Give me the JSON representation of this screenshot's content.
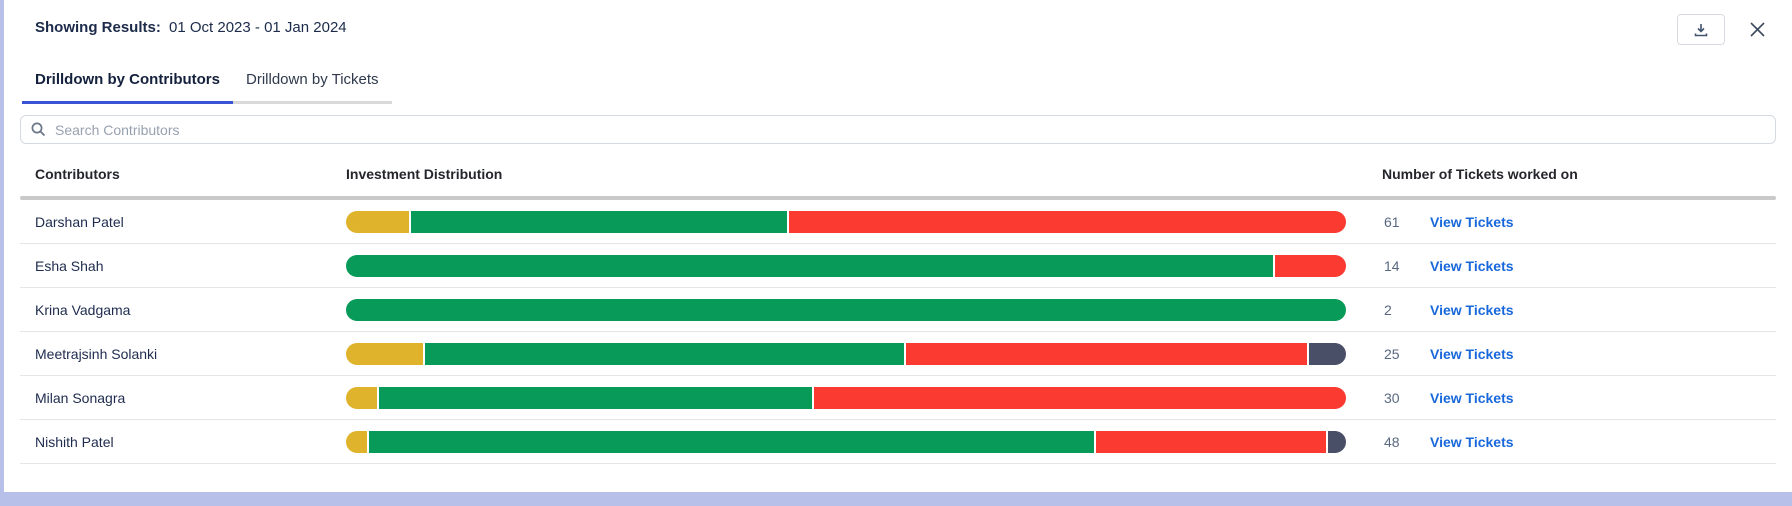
{
  "header": {
    "results_label": "Showing Results:",
    "results_value": "01 Oct 2023 - 01 Jan 2024"
  },
  "tabs": [
    {
      "label": "Drilldown by Contributors",
      "active": true
    },
    {
      "label": "Drilldown by Tickets",
      "active": false
    }
  ],
  "search": {
    "placeholder": "Search Contributors"
  },
  "table": {
    "columns": [
      "Contributors",
      "Investment Distribution",
      "Number of Tickets worked on"
    ],
    "link_label": "View Tickets",
    "rows": [
      {
        "name": "Darshan Patel",
        "tickets": "61",
        "segments": [
          {
            "color": "yellow",
            "percent": 6.3
          },
          {
            "color": "green",
            "percent": 37.8
          },
          {
            "color": "red",
            "percent": 55.9
          }
        ]
      },
      {
        "name": "Esha Shah",
        "tickets": "14",
        "segments": [
          {
            "color": "green",
            "percent": 92.9
          },
          {
            "color": "red",
            "percent": 7.1
          }
        ]
      },
      {
        "name": "Krina Vadgama",
        "tickets": "2",
        "segments": [
          {
            "color": "green",
            "percent": 100
          }
        ]
      },
      {
        "name": "Meetrajsinh Solanki",
        "tickets": "25",
        "segments": [
          {
            "color": "yellow",
            "percent": 7.7
          },
          {
            "color": "green",
            "percent": 48.2
          },
          {
            "color": "red",
            "percent": 40.4
          },
          {
            "color": "slate",
            "percent": 3.7
          }
        ]
      },
      {
        "name": "Milan Sonagra",
        "tickets": "30",
        "segments": [
          {
            "color": "yellow",
            "percent": 3.1
          },
          {
            "color": "green",
            "percent": 43.5
          },
          {
            "color": "red",
            "percent": 53.4
          }
        ]
      },
      {
        "name": "Nishith Patel",
        "tickets": "48",
        "segments": [
          {
            "color": "yellow",
            "percent": 2.1
          },
          {
            "color": "green",
            "percent": 72.9
          },
          {
            "color": "red",
            "percent": 23.2
          },
          {
            "color": "slate",
            "percent": 1.8
          }
        ]
      }
    ]
  },
  "colors": {
    "yellow": "#dfb32c",
    "green": "#089a58",
    "red": "#fb3b31",
    "slate": "#4a4f68",
    "link_blue": "#1868db",
    "tab_active_underline": "#3a53d4",
    "page_background": "#b6c0e9"
  }
}
